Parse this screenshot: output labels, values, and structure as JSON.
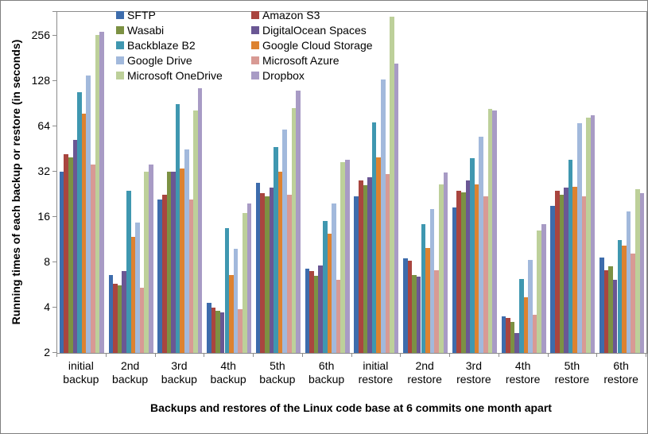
{
  "chart_data": {
    "type": "bar",
    "title": "",
    "xlabel": "Backups and restores of the Linux code base at 6 commits one month apart",
    "ylabel": "Running times of each backup or restore (in seconds)",
    "y_scale": "log2",
    "y_ticks": [
      2,
      4,
      8,
      16,
      32,
      64,
      128,
      256
    ],
    "ylim": [
      2,
      370
    ],
    "grid": false,
    "legend_position": "top-left-inside-two-columns",
    "categories": [
      "initial backup",
      "2nd backup",
      "3rd backup",
      "4th backup",
      "5th backup",
      "6th backup",
      "initial restore",
      "2nd restore",
      "3rd restore",
      "4th restore",
      "5th restore",
      "6th restore"
    ],
    "series": [
      {
        "name": "SFTP",
        "color": "#3D6CAC",
        "values": [
          32,
          6.6,
          21,
          4.3,
          27,
          7.3,
          22,
          8.5,
          18.5,
          3.5,
          19,
          8.6
        ]
      },
      {
        "name": "Amazon S3",
        "color": "#A9453F",
        "values": [
          42,
          5.8,
          22.5,
          4.0,
          23,
          7.0,
          28,
          8.2,
          24,
          3.4,
          24,
          7.1
        ]
      },
      {
        "name": "Wasabi",
        "color": "#7C9143",
        "values": [
          40,
          5.6,
          32,
          3.8,
          22,
          6.5,
          26,
          6.6,
          23.5,
          3.2,
          22.5,
          7.5
        ]
      },
      {
        "name": "DigitalOcean Spaces",
        "color": "#6A5794",
        "values": [
          52,
          7.0,
          32,
          3.7,
          25,
          7.6,
          29.5,
          6.4,
          28,
          2.7,
          25,
          6.1
        ]
      },
      {
        "name": "Backblaze B2",
        "color": "#3F97B0",
        "values": [
          108,
          24,
          90,
          13.6,
          47,
          15,
          68,
          14.4,
          39.5,
          6.2,
          38.5,
          11.2
        ]
      },
      {
        "name": "Google Cloud Storage",
        "color": "#DD8230",
        "values": [
          78,
          11.8,
          33.5,
          6.6,
          32,
          12.4,
          40,
          10,
          26.5,
          4.7,
          25.5,
          10.3
        ]
      },
      {
        "name": "Google Drive",
        "color": "#A2B9DC",
        "values": [
          140,
          14.7,
          45,
          9.8,
          61,
          19.8,
          132,
          18,
          55,
          8.3,
          67,
          17.4
        ]
      },
      {
        "name": "Microsoft Azure",
        "color": "#D89A94",
        "values": [
          36,
          5.4,
          21,
          3.9,
          22.5,
          6.1,
          31,
          7.1,
          22,
          3.6,
          22,
          9.2
        ]
      },
      {
        "name": "Microsoft OneDrive",
        "color": "#BDD09A",
        "values": [
          260,
          32,
          82,
          17,
          85,
          37,
          345,
          26.5,
          84,
          13,
          73,
          24.5
        ]
      },
      {
        "name": "Dropbox",
        "color": "#A89BC5",
        "values": [
          272,
          36,
          115,
          19.8,
          111,
          38.5,
          167,
          31.5,
          82,
          14.3,
          76,
          23
        ]
      }
    ]
  },
  "colors": {
    "axis": "#8c8c8c",
    "text": "#000000",
    "background": "#ffffff",
    "image_border": "#7f7f7f"
  }
}
